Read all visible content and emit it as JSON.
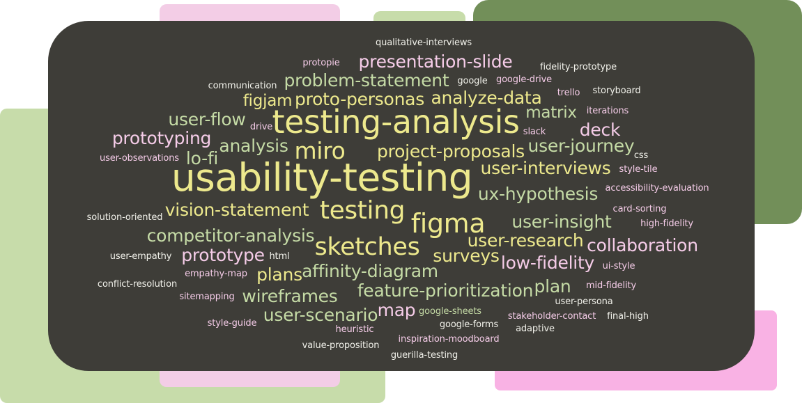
{
  "colors": {
    "background": "#ffffff",
    "card": "#3e3d38",
    "light_green": "#c7dcaa",
    "pink": "#f3cde6",
    "dark_green": "#728f59",
    "hot_pink": "#f9b2e4",
    "word_yellow": "#ede98d",
    "word_green": "#c5dba6",
    "word_pink": "#f5cce8",
    "word_white": "#f1f1ea"
  },
  "words": [
    {
      "text": "qualitative-interviews",
      "color": "white"
    },
    {
      "text": "protopie",
      "color": "pink"
    },
    {
      "text": "presentation-slide",
      "color": "pink"
    },
    {
      "text": "fidelity-prototype",
      "color": "white"
    },
    {
      "text": "google",
      "color": "white"
    },
    {
      "text": "google-drive",
      "color": "pink"
    },
    {
      "text": "communication",
      "color": "white"
    },
    {
      "text": "problem-statement",
      "color": "green"
    },
    {
      "text": "trello",
      "color": "pink"
    },
    {
      "text": "storyboard",
      "color": "white"
    },
    {
      "text": "figjam",
      "color": "yellow"
    },
    {
      "text": "proto-personas",
      "color": "yellow"
    },
    {
      "text": "analyze-data",
      "color": "yellow"
    },
    {
      "text": "iterations",
      "color": "pink"
    },
    {
      "text": "matrix",
      "color": "green"
    },
    {
      "text": "user-flow",
      "color": "green"
    },
    {
      "text": "drive",
      "color": "pink"
    },
    {
      "text": "testing-analysis",
      "color": "yellow"
    },
    {
      "text": "slack",
      "color": "pink"
    },
    {
      "text": "deck",
      "color": "pink"
    },
    {
      "text": "prototyping",
      "color": "pink"
    },
    {
      "text": "analysis",
      "color": "green"
    },
    {
      "text": "user-journey",
      "color": "green"
    },
    {
      "text": "miro",
      "color": "yellow"
    },
    {
      "text": "project-proposals",
      "color": "yellow"
    },
    {
      "text": "css",
      "color": "white"
    },
    {
      "text": "user-observations",
      "color": "pink"
    },
    {
      "text": "lo-fi",
      "color": "green"
    },
    {
      "text": "user-interviews",
      "color": "yellow"
    },
    {
      "text": "style-tile",
      "color": "pink"
    },
    {
      "text": "usability-testing",
      "color": "yellow"
    },
    {
      "text": "accessibility-evaluation",
      "color": "pink"
    },
    {
      "text": "ux-hypothesis",
      "color": "green"
    },
    {
      "text": "vision-statement",
      "color": "yellow"
    },
    {
      "text": "testing",
      "color": "yellow"
    },
    {
      "text": "card-sorting",
      "color": "pink"
    },
    {
      "text": "solution-oriented",
      "color": "white"
    },
    {
      "text": "figma",
      "color": "yellow"
    },
    {
      "text": "user-insight",
      "color": "green"
    },
    {
      "text": "high-fidelity",
      "color": "pink"
    },
    {
      "text": "competitor-analysis",
      "color": "green"
    },
    {
      "text": "user-research",
      "color": "yellow"
    },
    {
      "text": "collaboration",
      "color": "pink"
    },
    {
      "text": "sketches",
      "color": "yellow"
    },
    {
      "text": "prototype",
      "color": "pink"
    },
    {
      "text": "user-empathy",
      "color": "white"
    },
    {
      "text": "html",
      "color": "white"
    },
    {
      "text": "surveys",
      "color": "yellow"
    },
    {
      "text": "low-fidelity",
      "color": "pink"
    },
    {
      "text": "ui-style",
      "color": "pink"
    },
    {
      "text": "plans",
      "color": "yellow"
    },
    {
      "text": "affinity-diagram",
      "color": "green"
    },
    {
      "text": "empathy-map",
      "color": "pink"
    },
    {
      "text": "conflict-resolution",
      "color": "white"
    },
    {
      "text": "feature-prioritization",
      "color": "green"
    },
    {
      "text": "plan",
      "color": "green"
    },
    {
      "text": "mid-fidelity",
      "color": "pink"
    },
    {
      "text": "sitemapping",
      "color": "pink"
    },
    {
      "text": "wireframes",
      "color": "green"
    },
    {
      "text": "user-persona",
      "color": "white"
    },
    {
      "text": "map",
      "color": "pink"
    },
    {
      "text": "google-sheets",
      "color": "green"
    },
    {
      "text": "user-scenario",
      "color": "green"
    },
    {
      "text": "stakeholder-contact",
      "color": "pink"
    },
    {
      "text": "final-high",
      "color": "white"
    },
    {
      "text": "style-guide",
      "color": "pink"
    },
    {
      "text": "google-forms",
      "color": "white"
    },
    {
      "text": "heuristic",
      "color": "pink"
    },
    {
      "text": "adaptive",
      "color": "white"
    },
    {
      "text": "inspiration-moodboard",
      "color": "pink"
    },
    {
      "text": "value-proposition",
      "color": "white"
    },
    {
      "text": "guerilla-testing",
      "color": "white"
    }
  ]
}
